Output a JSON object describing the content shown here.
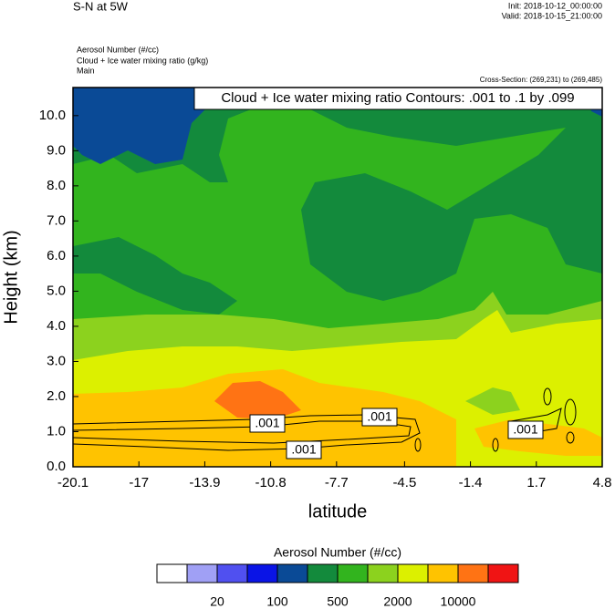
{
  "chart_data": {
    "type": "contour",
    "title": "S-N at 5W",
    "init": "Init: 2018-10-12_00:00:00",
    "valid": "Valid: 2018-10-15_21:00:00",
    "fields": [
      "Aerosol Number   (#/cc)",
      "Cloud + Ice water mixing ratio   (g/kg)",
      "Main"
    ],
    "cross_section": "Cross-Section: (269,231) to (269,485)",
    "contour_info": "Cloud + Ice water mixing ratio Contours: .001 to .1 by .099",
    "contour_labels": [
      ".001",
      ".001",
      ".001",
      ".001"
    ],
    "xlabel": "latitude",
    "ylabel": "Height (km)",
    "xlim": [
      -20.1,
      4.8
    ],
    "xticks": [
      -20.1,
      -17.0,
      -13.9,
      -10.8,
      -7.7,
      -4.5,
      -1.4,
      1.7,
      4.8
    ],
    "ylim": [
      0,
      10.8
    ],
    "yticks": [
      {
        "value": 0,
        "label": "0.0"
      },
      {
        "value": 1,
        "label": "1.0"
      },
      {
        "value": 2,
        "label": "2.0"
      },
      {
        "value": 3,
        "label": "3.0"
      },
      {
        "value": 4,
        "label": "4.0"
      },
      {
        "value": 5,
        "label": "5.0"
      },
      {
        "value": 6,
        "label": "6.0"
      },
      {
        "value": 7,
        "label": "7.0"
      },
      {
        "value": 8,
        "label": "8.0"
      },
      {
        "value": 9,
        "label": "9.0"
      },
      {
        "value": 10,
        "label": "10.0"
      }
    ],
    "colorbar": {
      "title": "Aerosol Number  (#/cc)",
      "colors": [
        "#ffffff",
        "#a0a0f5",
        "#5050f0",
        "#0a14e6",
        "#0a4a96",
        "#138a3c",
        "#32b41e",
        "#8cd21e",
        "#dcf000",
        "#ffc300",
        "#ff7314",
        "#f01414"
      ],
      "levels": [
        20,
        100,
        500,
        2000,
        10000
      ]
    }
  }
}
